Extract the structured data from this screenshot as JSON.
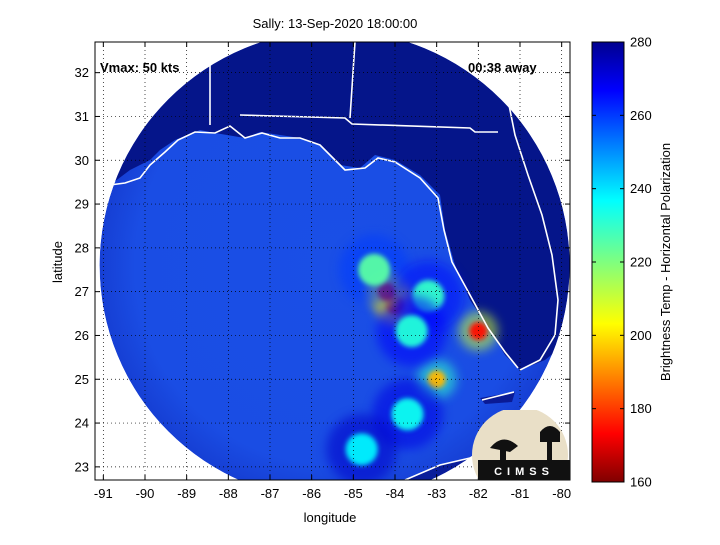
{
  "chart_data": {
    "type": "heatmap",
    "title": "Sally: 13-Sep-2020 18:00:00",
    "xlabel": "longitude",
    "ylabel": "latitude",
    "xlim": [
      -91.2,
      -79.8
    ],
    "ylim": [
      22.7,
      32.7
    ],
    "x_ticks": [
      "-91",
      "-90",
      "-89",
      "-88",
      "-87",
      "-86",
      "-85",
      "-84",
      "-83",
      "-82",
      "-81",
      "-80"
    ],
    "y_ticks": [
      "23",
      "24",
      "25",
      "26",
      "27",
      "28",
      "29",
      "30",
      "31",
      "32"
    ],
    "grid": true,
    "annotations": {
      "vmax": "Vmax: 50 kts",
      "time_offset": "00:38 away"
    },
    "colorbar": {
      "label": "Brightness Temp - Horizontal Polarization",
      "min": 160,
      "max": 280,
      "ticks": [
        "160",
        "180",
        "200",
        "220",
        "240",
        "260",
        "280"
      ]
    },
    "swath": {
      "center_lon": -85.45,
      "center_lat": 27.6
    },
    "features": [
      {
        "kind": "convective-core",
        "lon": -84.0,
        "lat": 26.7,
        "value": 165
      },
      {
        "kind": "convective-core",
        "lon": -84.2,
        "lat": 27.0,
        "value": 168
      },
      {
        "kind": "convective-core",
        "lon": -82.0,
        "lat": 26.1,
        "value": 175
      },
      {
        "kind": "convective-core",
        "lon": -83.0,
        "lat": 25.0,
        "value": 195
      },
      {
        "kind": "rainband",
        "lon": -84.5,
        "lat": 27.5,
        "value": 225
      },
      {
        "kind": "rainband",
        "lon": -83.2,
        "lat": 26.9,
        "value": 230
      },
      {
        "kind": "rainband",
        "lon": -83.6,
        "lat": 26.1,
        "value": 232
      },
      {
        "kind": "rainband",
        "lon": -83.7,
        "lat": 24.2,
        "value": 235
      },
      {
        "kind": "rainband",
        "lon": -84.8,
        "lat": 23.4,
        "value": 238
      },
      {
        "kind": "land",
        "value": 278
      },
      {
        "kind": "ocean",
        "value": 258
      }
    ],
    "logo_text": "CIMSS"
  }
}
